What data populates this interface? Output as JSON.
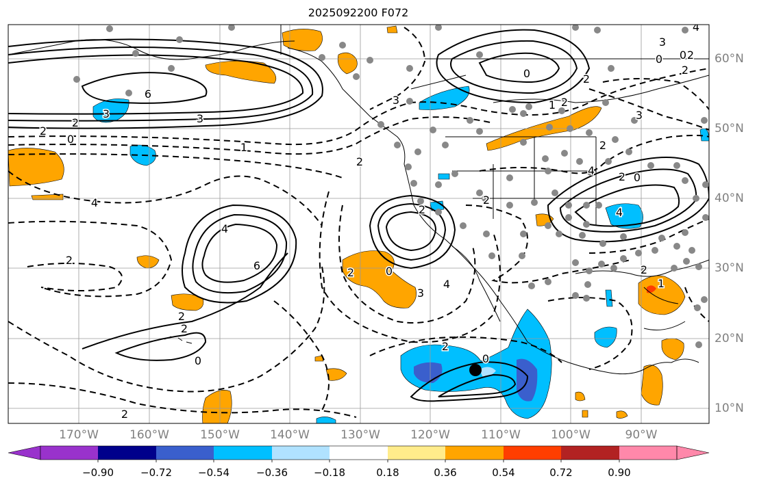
{
  "title": "2025092200 F072",
  "lat_labels": [
    "60°N",
    "50°N",
    "40°N",
    "30°N",
    "20°N",
    "10°N"
  ],
  "lon_labels": [
    "170°W",
    "160°W",
    "150°W",
    "140°W",
    "130°W",
    "120°W",
    "110°W",
    "100°W",
    "90°W"
  ],
  "colorbar": {
    "ticks": [
      "−0.90",
      "−0.72",
      "−0.54",
      "−0.36",
      "−0.18",
      "0.18",
      "0.36",
      "0.54",
      "0.72",
      "0.90"
    ],
    "colors": [
      "#9932cc",
      "#00008b",
      "#3a5fcd",
      "#00bfff",
      "#b0e2ff",
      "#ffffff",
      "#ffec8b",
      "#ffa500",
      "#ff3e00",
      "#b22222",
      "#ff88aa"
    ]
  },
  "contour_labels": [
    "6",
    "2",
    "0",
    "2",
    "4",
    "6",
    "3",
    "2",
    "0",
    "1",
    "4",
    "2",
    "2",
    "2",
    "0",
    "2",
    "3",
    "4",
    "3",
    "2",
    "2",
    "0",
    "2",
    "0",
    "1",
    "2",
    "2",
    "0",
    "4",
    "3",
    "2",
    "0",
    "2",
    "3",
    "4",
    "3",
    "0",
    "2",
    "4",
    "2",
    "2",
    "1",
    "2"
  ]
}
